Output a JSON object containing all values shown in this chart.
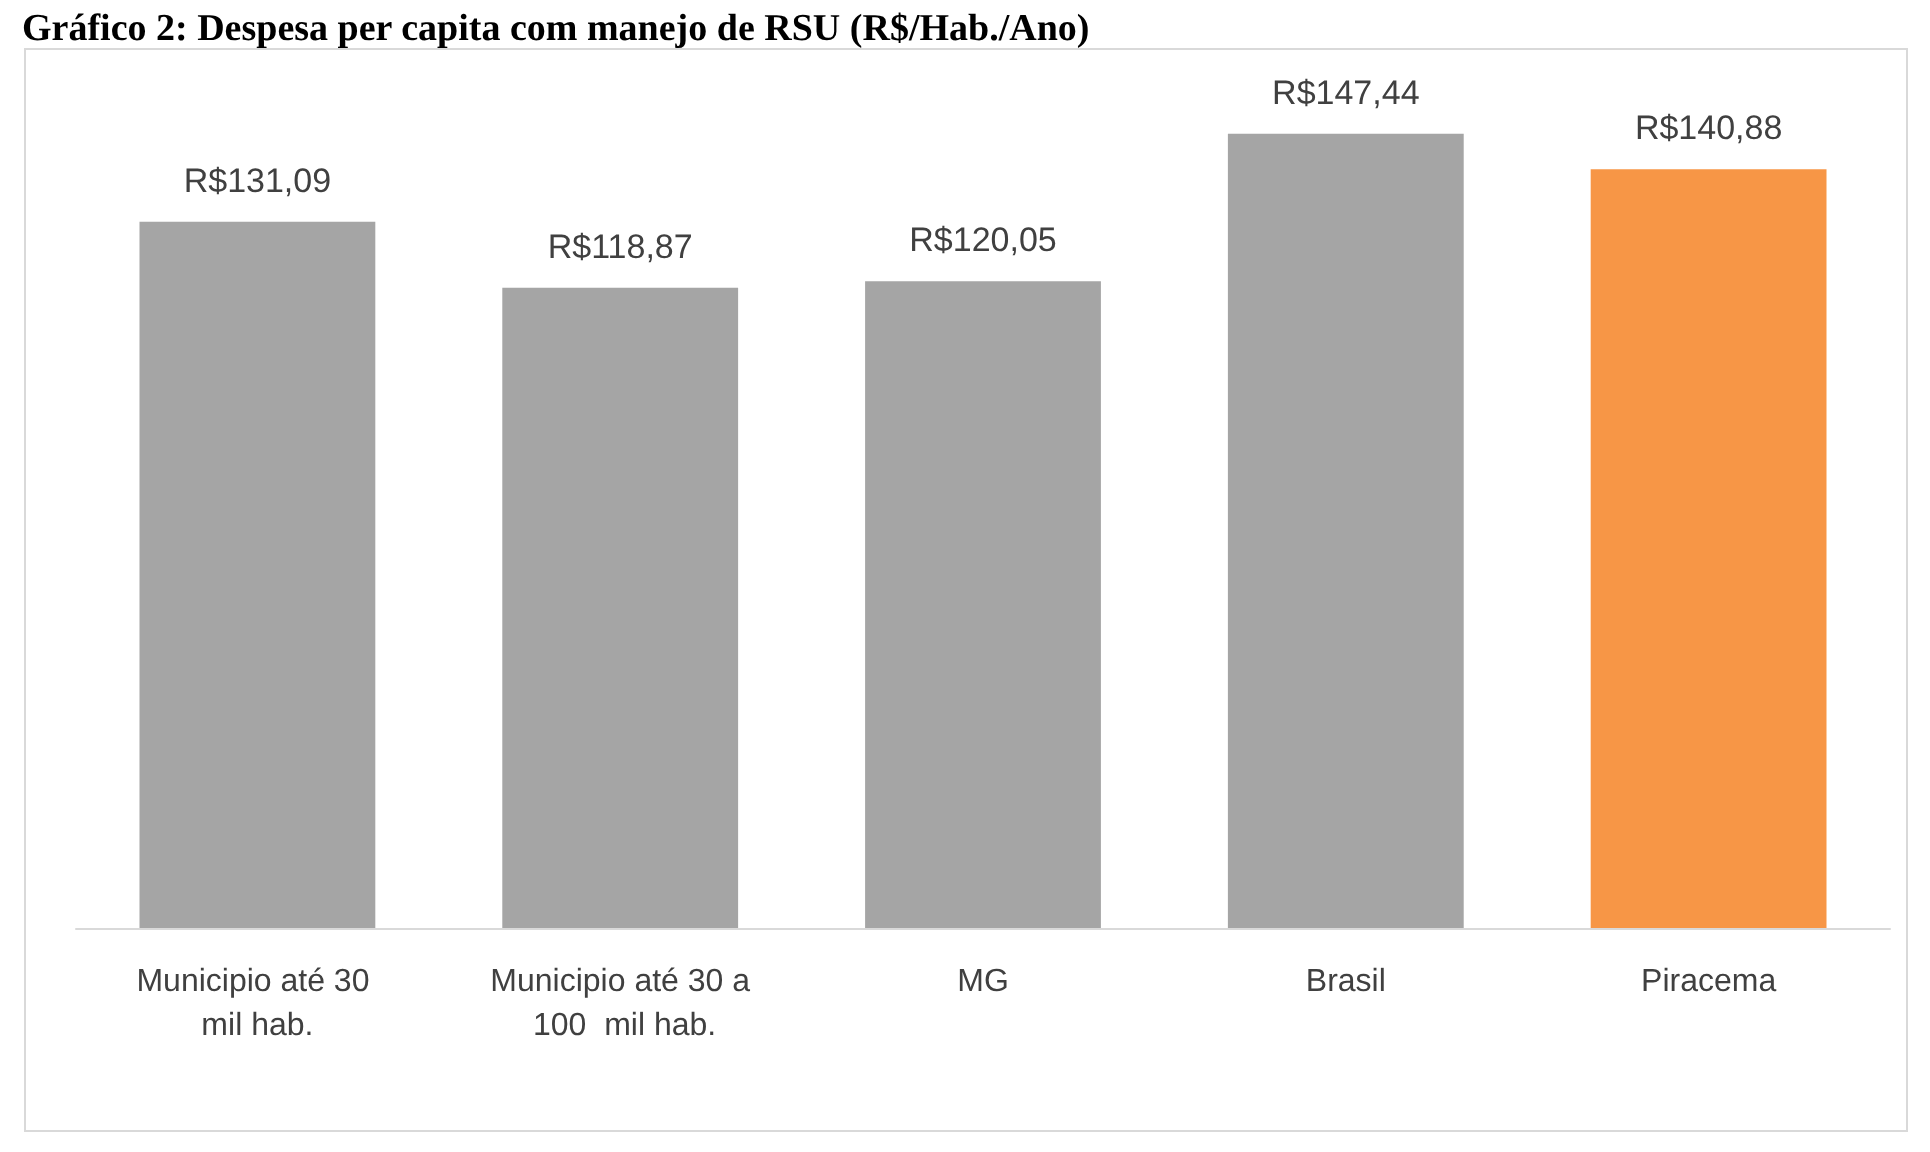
{
  "chart_data": {
    "type": "bar",
    "title": "Gráfico 2: Despesa per capita com manejo de RSU (R$/Hab./Ano)",
    "categories": [
      "Municipio até 30 mil hab.",
      "Municipio até 30 a 100  mil hab.",
      "MG",
      "Brasil",
      "Piracema"
    ],
    "values": [
      131.09,
      118.87,
      120.05,
      147.44,
      140.88
    ],
    "colors": [
      "#a5a5a5",
      "#a5a5a5",
      "#a5a5a5",
      "#a5a5a5",
      "#f79646"
    ],
    "value_labels": [
      "R$131,09",
      "R$118,87",
      "R$120,05",
      "R$147,44",
      "R$140,88"
    ]
  }
}
